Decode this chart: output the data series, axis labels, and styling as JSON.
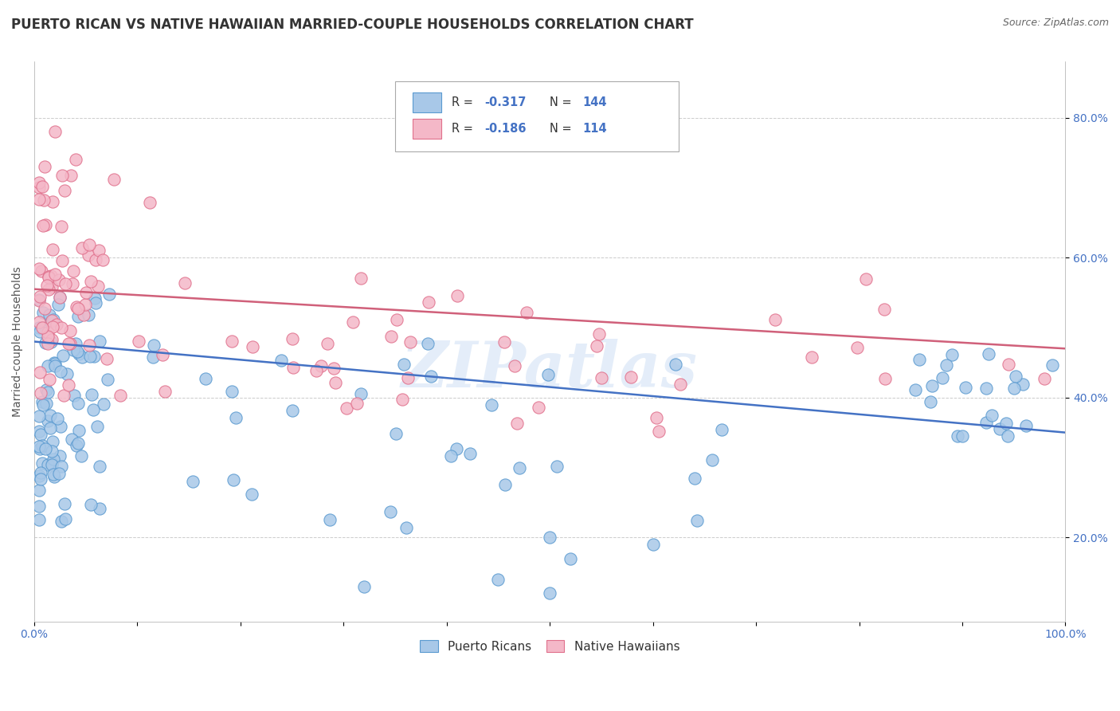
{
  "title": "PUERTO RICAN VS NATIVE HAWAIIAN MARRIED-COUPLE HOUSEHOLDS CORRELATION CHART",
  "source": "Source: ZipAtlas.com",
  "ylabel": "Married-couple Households",
  "xlim": [
    0.0,
    1.0
  ],
  "ylim": [
    0.08,
    0.88
  ],
  "yticks": [
    0.2,
    0.4,
    0.6,
    0.8
  ],
  "yticklabels": [
    "20.0%",
    "40.0%",
    "60.0%",
    "80.0%"
  ],
  "blue_color": "#A8C8E8",
  "blue_edge_color": "#5A9AD0",
  "pink_color": "#F4B8C8",
  "pink_edge_color": "#E0708C",
  "blue_line_color": "#4472C4",
  "pink_line_color": "#D0607A",
  "legend_r_blue": "-0.317",
  "legend_n_blue": "144",
  "legend_r_pink": "-0.186",
  "legend_n_pink": "114",
  "blue_trend_x0": 0.0,
  "blue_trend_x1": 1.0,
  "blue_trend_y0": 0.48,
  "blue_trend_y1": 0.35,
  "pink_trend_x0": 0.0,
  "pink_trend_x1": 1.0,
  "pink_trend_y0": 0.555,
  "pink_trend_y1": 0.47,
  "watermark": "ZIPatlas",
  "background_color": "#FFFFFF",
  "title_fontsize": 12,
  "axis_label_fontsize": 10,
  "tick_fontsize": 10,
  "legend_text_color": "#333333",
  "legend_value_color": "#4472C4"
}
